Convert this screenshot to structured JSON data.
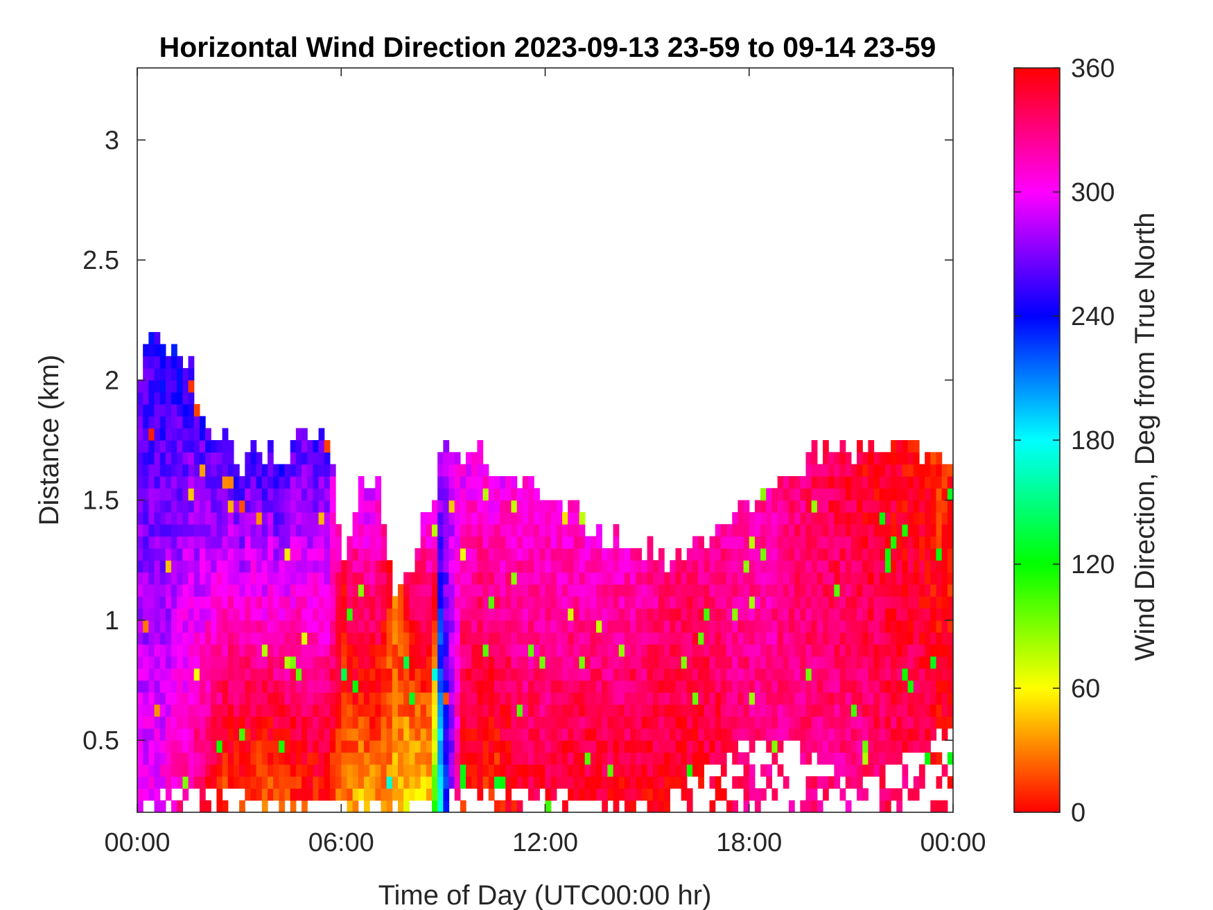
{
  "chart_data": {
    "type": "heatmap",
    "title": "Horizontal Wind Direction 2023-09-13 23-59 to 09-14 23-59",
    "xlabel": "Time of Day (UTC00:00 hr)",
    "ylabel": "Distance (km)",
    "colorbar_label": "Wind Direction, Deg from True North",
    "x_tick_labels": [
      "00:00",
      "06:00",
      "12:00",
      "18:00",
      "00:00"
    ],
    "y_tick_labels": [
      "0.5",
      "1",
      "1.5",
      "2",
      "2.5",
      "3"
    ],
    "y_ticks": [
      0.5,
      1,
      1.5,
      2,
      2.5,
      3
    ],
    "colorbar_tick_labels": [
      "0",
      "60",
      "120",
      "180",
      "240",
      "300",
      "360"
    ],
    "colorbar_ticks": [
      0,
      60,
      120,
      180,
      240,
      300,
      360
    ],
    "xlim_hours": [
      0,
      24
    ],
    "ylim": [
      0.2,
      3.3
    ],
    "clim": [
      0,
      360
    ],
    "colormap": "hsv",
    "grid": false,
    "time_step_hours": 0.5,
    "range_step_km": 0.05,
    "columns": [
      {
        "t": 0.0,
        "top": 2.05,
        "bottom": 0.25,
        "dir_low": 300,
        "dir_high": 255
      },
      {
        "t": 0.5,
        "top": 2.15,
        "bottom": 0.25,
        "dir_low": 300,
        "dir_high": 245
      },
      {
        "t": 1.0,
        "top": 2.1,
        "bottom": 0.3,
        "dir_low": 320,
        "dir_high": 245
      },
      {
        "t": 1.5,
        "top": 2.05,
        "bottom": 0.3,
        "dir_low": 330,
        "dir_high": 250
      },
      {
        "t": 2.0,
        "top": 1.75,
        "bottom": 0.3,
        "dir_low": 355,
        "dir_high": 255
      },
      {
        "t": 2.5,
        "top": 1.7,
        "bottom": 0.3,
        "dir_low": 15,
        "dir_high": 255
      },
      {
        "t": 3.0,
        "top": 1.65,
        "bottom": 0.25,
        "dir_low": 20,
        "dir_high": 250
      },
      {
        "t": 3.5,
        "top": 1.65,
        "bottom": 0.25,
        "dir_low": 25,
        "dir_high": 250
      },
      {
        "t": 4.0,
        "top": 1.65,
        "bottom": 0.25,
        "dir_low": 20,
        "dir_high": 250
      },
      {
        "t": 4.5,
        "top": 1.7,
        "bottom": 0.25,
        "dir_low": 15,
        "dir_high": 255
      },
      {
        "t": 5.0,
        "top": 1.75,
        "bottom": 0.25,
        "dir_low": 10,
        "dir_high": 255
      },
      {
        "t": 5.5,
        "top": 1.75,
        "bottom": 0.25,
        "dir_low": 5,
        "dir_high": 255
      },
      {
        "t": 6.0,
        "top": 1.25,
        "bottom": 0.25,
        "dir_low": 30,
        "dir_high": 345
      },
      {
        "t": 6.5,
        "top": 1.55,
        "bottom": 0.25,
        "dir_low": 45,
        "dir_high": 290
      },
      {
        "t": 7.0,
        "top": 1.55,
        "bottom": 0.25,
        "dir_low": 40,
        "dir_high": 300
      },
      {
        "t": 7.5,
        "top": 1.1,
        "bottom": 0.25,
        "dir_low": 40,
        "dir_high": 20
      },
      {
        "t": 8.0,
        "top": 1.2,
        "bottom": 0.25,
        "dir_low": 60,
        "dir_high": 330
      },
      {
        "t": 8.5,
        "top": 1.45,
        "bottom": 0.25,
        "dir_low": 55,
        "dir_high": 300
      },
      {
        "t": 9.0,
        "top": 1.7,
        "bottom": 0.25,
        "dir_low": 230,
        "dir_high": 290
      },
      {
        "t": 9.5,
        "top": 1.65,
        "bottom": 0.3,
        "dir_low": 5,
        "dir_high": 295
      },
      {
        "t": 10.0,
        "top": 1.7,
        "bottom": 0.3,
        "dir_low": 10,
        "dir_high": 300
      },
      {
        "t": 10.5,
        "top": 1.6,
        "bottom": 0.3,
        "dir_low": 15,
        "dir_high": 300
      },
      {
        "t": 11.0,
        "top": 1.55,
        "bottom": 0.3,
        "dir_low": 355,
        "dir_high": 305
      },
      {
        "t": 11.5,
        "top": 1.55,
        "bottom": 0.3,
        "dir_low": 350,
        "dir_high": 305
      },
      {
        "t": 12.0,
        "top": 1.5,
        "bottom": 0.3,
        "dir_low": 350,
        "dir_high": 305
      },
      {
        "t": 12.5,
        "top": 1.45,
        "bottom": 0.25,
        "dir_low": 355,
        "dir_high": 305
      },
      {
        "t": 13.0,
        "top": 1.4,
        "bottom": 0.25,
        "dir_low": 355,
        "dir_high": 310
      },
      {
        "t": 13.5,
        "top": 1.35,
        "bottom": 0.25,
        "dir_low": 355,
        "dir_high": 310
      },
      {
        "t": 14.0,
        "top": 1.3,
        "bottom": 0.25,
        "dir_low": 355,
        "dir_high": 310
      },
      {
        "t": 14.5,
        "top": 1.3,
        "bottom": 0.25,
        "dir_low": 355,
        "dir_high": 315
      },
      {
        "t": 15.0,
        "top": 1.25,
        "bottom": 0.25,
        "dir_low": 355,
        "dir_high": 320
      },
      {
        "t": 15.5,
        "top": 1.25,
        "bottom": 0.25,
        "dir_low": 355,
        "dir_high": 325
      },
      {
        "t": 16.0,
        "top": 1.25,
        "bottom": 0.3,
        "dir_low": 355,
        "dir_high": 330
      },
      {
        "t": 16.5,
        "top": 1.3,
        "bottom": 0.35,
        "dir_low": 355,
        "dir_high": 330
      },
      {
        "t": 17.0,
        "top": 1.35,
        "bottom": 0.4,
        "dir_low": 350,
        "dir_high": 325
      },
      {
        "t": 17.5,
        "top": 1.4,
        "bottom": 0.45,
        "dir_low": 340,
        "dir_high": 320
      },
      {
        "t": 18.0,
        "top": 1.45,
        "bottom": 0.45,
        "dir_low": 330,
        "dir_high": 320
      },
      {
        "t": 18.5,
        "top": 1.55,
        "bottom": 0.45,
        "dir_low": 330,
        "dir_high": 320
      },
      {
        "t": 19.0,
        "top": 1.6,
        "bottom": 0.45,
        "dir_low": 330,
        "dir_high": 330
      },
      {
        "t": 19.5,
        "top": 1.65,
        "bottom": 0.45,
        "dir_low": 330,
        "dir_high": 335
      },
      {
        "t": 20.0,
        "top": 1.7,
        "bottom": 0.4,
        "dir_low": 330,
        "dir_high": 340
      },
      {
        "t": 20.5,
        "top": 1.7,
        "bottom": 0.35,
        "dir_low": 325,
        "dir_high": 345
      },
      {
        "t": 21.0,
        "top": 1.7,
        "bottom": 0.35,
        "dir_low": 325,
        "dir_high": 350
      },
      {
        "t": 21.5,
        "top": 1.7,
        "bottom": 0.35,
        "dir_low": 330,
        "dir_high": 355
      },
      {
        "t": 22.0,
        "top": 1.7,
        "bottom": 0.35,
        "dir_low": 335,
        "dir_high": 355
      },
      {
        "t": 22.5,
        "top": 1.7,
        "bottom": 0.4,
        "dir_low": 335,
        "dir_high": 358
      },
      {
        "t": 23.0,
        "top": 1.65,
        "bottom": 0.4,
        "dir_low": 340,
        "dir_high": 358
      },
      {
        "t": 23.5,
        "top": 1.65,
        "bottom": 0.5,
        "dir_low": 350,
        "dir_high": 10
      }
    ]
  }
}
